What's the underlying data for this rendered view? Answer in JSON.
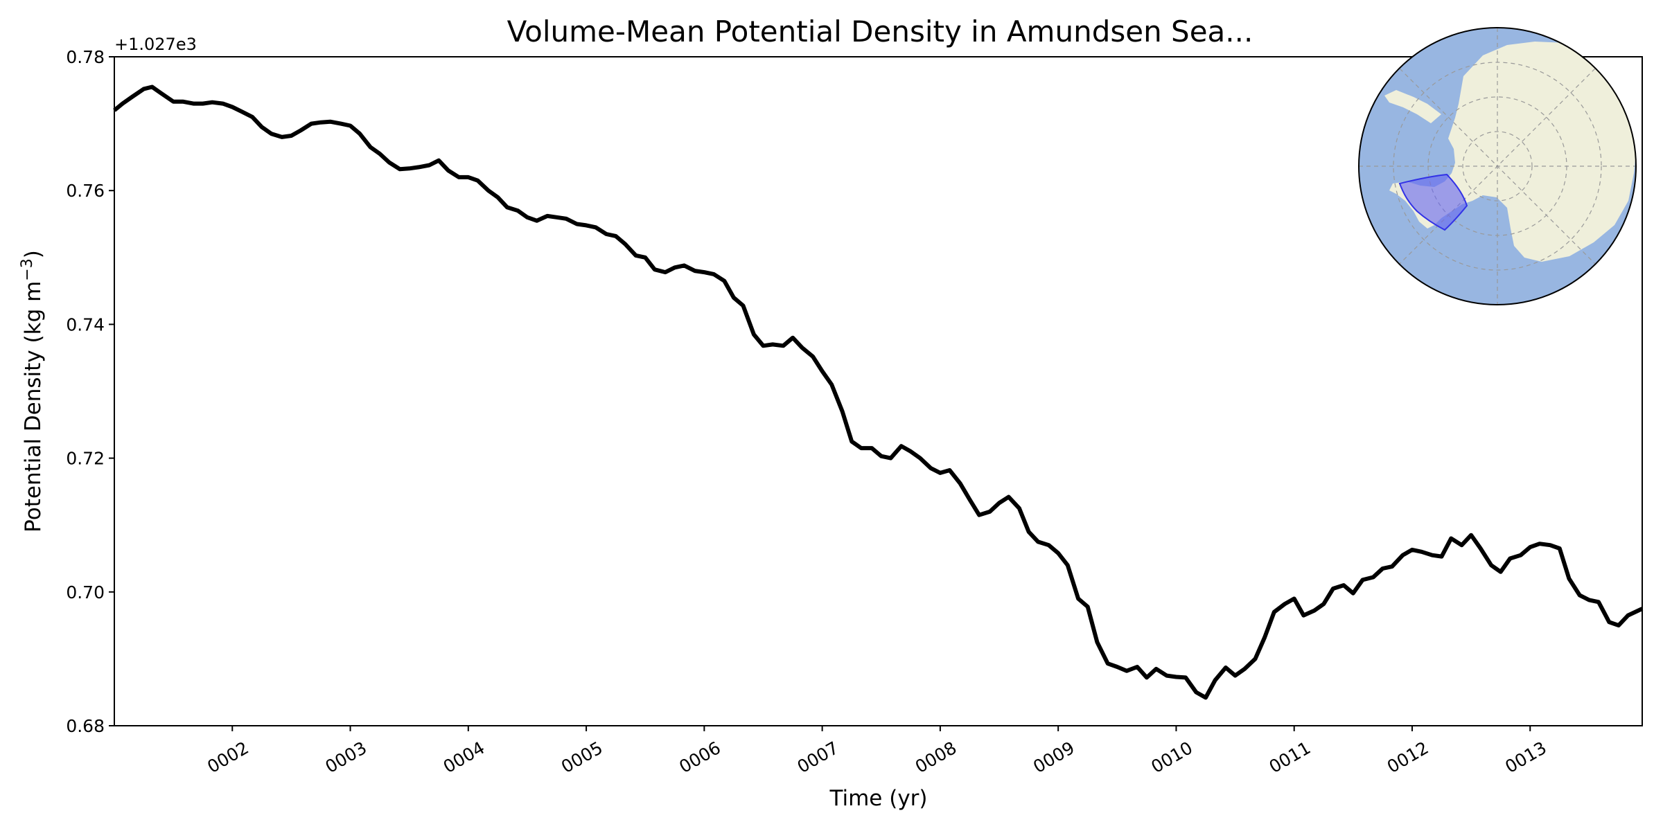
{
  "chart_data": {
    "type": "line",
    "title": "Volume-Mean Potential Density in Amundsen Sea...",
    "xlabel": "Time (yr)",
    "ylabel": "Potential Density (kg m",
    "ylabel_superscript": "−3",
    "ylabel_suffix": ")",
    "offset_label": "+1.027e3",
    "xlim": [
      1.0,
      13.95
    ],
    "ylim": [
      0.68,
      0.78
    ],
    "x_ticks": [
      {
        "value": 2,
        "label": "0002"
      },
      {
        "value": 3,
        "label": "0003"
      },
      {
        "value": 4,
        "label": "0004"
      },
      {
        "value": 5,
        "label": "0005"
      },
      {
        "value": 6,
        "label": "0006"
      },
      {
        "value": 7,
        "label": "0007"
      },
      {
        "value": 8,
        "label": "0008"
      },
      {
        "value": 9,
        "label": "0009"
      },
      {
        "value": 10,
        "label": "0010"
      },
      {
        "value": 11,
        "label": "0011"
      },
      {
        "value": 12,
        "label": "0012"
      },
      {
        "value": 13,
        "label": "0013"
      }
    ],
    "y_ticks": [
      {
        "value": 0.68,
        "label": "0.68"
      },
      {
        "value": 0.7,
        "label": "0.70"
      },
      {
        "value": 0.72,
        "label": "0.72"
      },
      {
        "value": 0.74,
        "label": "0.74"
      },
      {
        "value": 0.76,
        "label": "0.76"
      },
      {
        "value": 0.78,
        "label": "0.78"
      }
    ],
    "grid": false,
    "line_color": "#000000",
    "series": [
      {
        "x": [
          1.0,
          1.07,
          1.15,
          1.25,
          1.32,
          1.4,
          1.5,
          1.58,
          1.67,
          1.75,
          1.83,
          1.92,
          2.0,
          2.08,
          2.17,
          2.25,
          2.33,
          2.42,
          2.5,
          2.58,
          2.67,
          2.75,
          2.83,
          2.92,
          3.0,
          3.08,
          3.17,
          3.25,
          3.33,
          3.42,
          3.5,
          3.58,
          3.67,
          3.75,
          3.83,
          3.92,
          4.0,
          4.08,
          4.17,
          4.25,
          4.33,
          4.42,
          4.5,
          4.58,
          4.67,
          4.75,
          4.83,
          4.92,
          5.0,
          5.08,
          5.17,
          5.25,
          5.33,
          5.42,
          5.5,
          5.58,
          5.67,
          5.75,
          5.83,
          5.92,
          6.0,
          6.08,
          6.17,
          6.25,
          6.33,
          6.42,
          6.5,
          6.58,
          6.67,
          6.75,
          6.83,
          6.92,
          7.0,
          7.08,
          7.17,
          7.25,
          7.33,
          7.42,
          7.5,
          7.58,
          7.67,
          7.75,
          7.83,
          7.92,
          8.0,
          8.08,
          8.17,
          8.25,
          8.33,
          8.42,
          8.5,
          8.58,
          8.67,
          8.75,
          8.83,
          8.92,
          9.0,
          9.08,
          9.17,
          9.25,
          9.33,
          9.42,
          9.5,
          9.58,
          9.67,
          9.75,
          9.83,
          9.92,
          10.0,
          10.08,
          10.17,
          10.25,
          10.33,
          10.42,
          10.5,
          10.58,
          10.67,
          10.75,
          10.83,
          10.92,
          11.0,
          11.08,
          11.17,
          11.25,
          11.33,
          11.42,
          11.5,
          11.58,
          11.67,
          11.75,
          11.83,
          11.92,
          12.0,
          12.08,
          12.17,
          12.25,
          12.33,
          12.42,
          12.5,
          12.58,
          12.67,
          12.75,
          12.83,
          12.92,
          13.0,
          13.08,
          13.17,
          13.25,
          13.33,
          13.42,
          13.5,
          13.58,
          13.67,
          13.75,
          13.83,
          13.95
        ],
        "values": [
          0.772,
          0.773,
          0.774,
          0.7752,
          0.7755,
          0.7745,
          0.7733,
          0.7733,
          0.773,
          0.773,
          0.7732,
          0.773,
          0.7725,
          0.7718,
          0.771,
          0.7695,
          0.7685,
          0.768,
          0.7682,
          0.769,
          0.77,
          0.7702,
          0.7703,
          0.77,
          0.7697,
          0.7685,
          0.7665,
          0.7655,
          0.7642,
          0.7632,
          0.7633,
          0.7635,
          0.7638,
          0.7645,
          0.763,
          0.762,
          0.762,
          0.7615,
          0.76,
          0.759,
          0.7575,
          0.757,
          0.756,
          0.7555,
          0.7562,
          0.756,
          0.7558,
          0.755,
          0.7548,
          0.7545,
          0.7535,
          0.7532,
          0.752,
          0.7503,
          0.75,
          0.7482,
          0.7478,
          0.7485,
          0.7488,
          0.748,
          0.7478,
          0.7475,
          0.7465,
          0.744,
          0.7428,
          0.7385,
          0.7368,
          0.737,
          0.7368,
          0.738,
          0.7365,
          0.7352,
          0.733,
          0.731,
          0.727,
          0.7225,
          0.7215,
          0.7215,
          0.7203,
          0.72,
          0.7218,
          0.721,
          0.72,
          0.7185,
          0.7178,
          0.7182,
          0.7162,
          0.7138,
          0.7115,
          0.712,
          0.7133,
          0.7142,
          0.7125,
          0.709,
          0.7075,
          0.707,
          0.7058,
          0.704,
          0.699,
          0.6978,
          0.6925,
          0.6893,
          0.6888,
          0.6882,
          0.6888,
          0.6872,
          0.6885,
          0.6875,
          0.6873,
          0.6872,
          0.685,
          0.6842,
          0.6868,
          0.6887,
          0.6875,
          0.6885,
          0.69,
          0.6932,
          0.697,
          0.6982,
          0.699,
          0.6965,
          0.6972,
          0.6982,
          0.7005,
          0.701,
          0.6998,
          0.7018,
          0.7022,
          0.7035,
          0.7038,
          0.7055,
          0.7063,
          0.706,
          0.7055,
          0.7053,
          0.708,
          0.707,
          0.7085,
          0.7065,
          0.704,
          0.703,
          0.705,
          0.7055,
          0.7067,
          0.7072,
          0.707,
          0.7065,
          0.702,
          0.6995,
          0.6988,
          0.6985,
          0.6955,
          0.695,
          0.6965,
          0.6975
        ]
      }
    ],
    "inset_map": {
      "description_colors": {
        "ocean": "#98b6e1",
        "land": "#efefdb",
        "region_fill": "#6464f0",
        "region_edge": "#3232e6",
        "gridlines": "#999999"
      }
    }
  }
}
